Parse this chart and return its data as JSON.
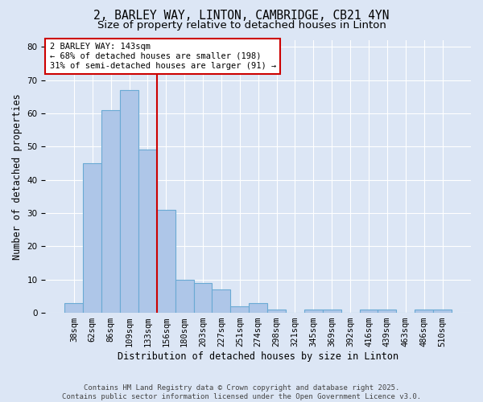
{
  "title": "2, BARLEY WAY, LINTON, CAMBRIDGE, CB21 4YN",
  "subtitle": "Size of property relative to detached houses in Linton",
  "xlabel": "Distribution of detached houses by size in Linton",
  "ylabel": "Number of detached properties",
  "categories": [
    "38sqm",
    "62sqm",
    "86sqm",
    "109sqm",
    "133sqm",
    "156sqm",
    "180sqm",
    "203sqm",
    "227sqm",
    "251sqm",
    "274sqm",
    "298sqm",
    "321sqm",
    "345sqm",
    "369sqm",
    "392sqm",
    "416sqm",
    "439sqm",
    "463sqm",
    "486sqm",
    "510sqm"
  ],
  "values": [
    3,
    45,
    61,
    67,
    49,
    31,
    10,
    9,
    7,
    2,
    3,
    1,
    0,
    1,
    1,
    0,
    1,
    1,
    0,
    1,
    1
  ],
  "bar_color": "#aec6e8",
  "bar_edge_color": "#6aaad4",
  "vline_x": 4.5,
  "vline_color": "#cc0000",
  "annotation_text": "2 BARLEY WAY: 143sqm\n← 68% of detached houses are smaller (198)\n31% of semi-detached houses are larger (91) →",
  "annotation_box_color": "#ffffff",
  "annotation_box_edge_color": "#cc0000",
  "ylim": [
    0,
    82
  ],
  "yticks": [
    0,
    10,
    20,
    30,
    40,
    50,
    60,
    70,
    80
  ],
  "background_color": "#dce6f5",
  "plot_bg_color": "#dce6f5",
  "footer_text": "Contains HM Land Registry data © Crown copyright and database right 2025.\nContains public sector information licensed under the Open Government Licence v3.0.",
  "title_fontsize": 10.5,
  "subtitle_fontsize": 9.5,
  "axis_label_fontsize": 8.5,
  "tick_fontsize": 7.5,
  "annotation_fontsize": 7.5,
  "footer_fontsize": 6.5
}
